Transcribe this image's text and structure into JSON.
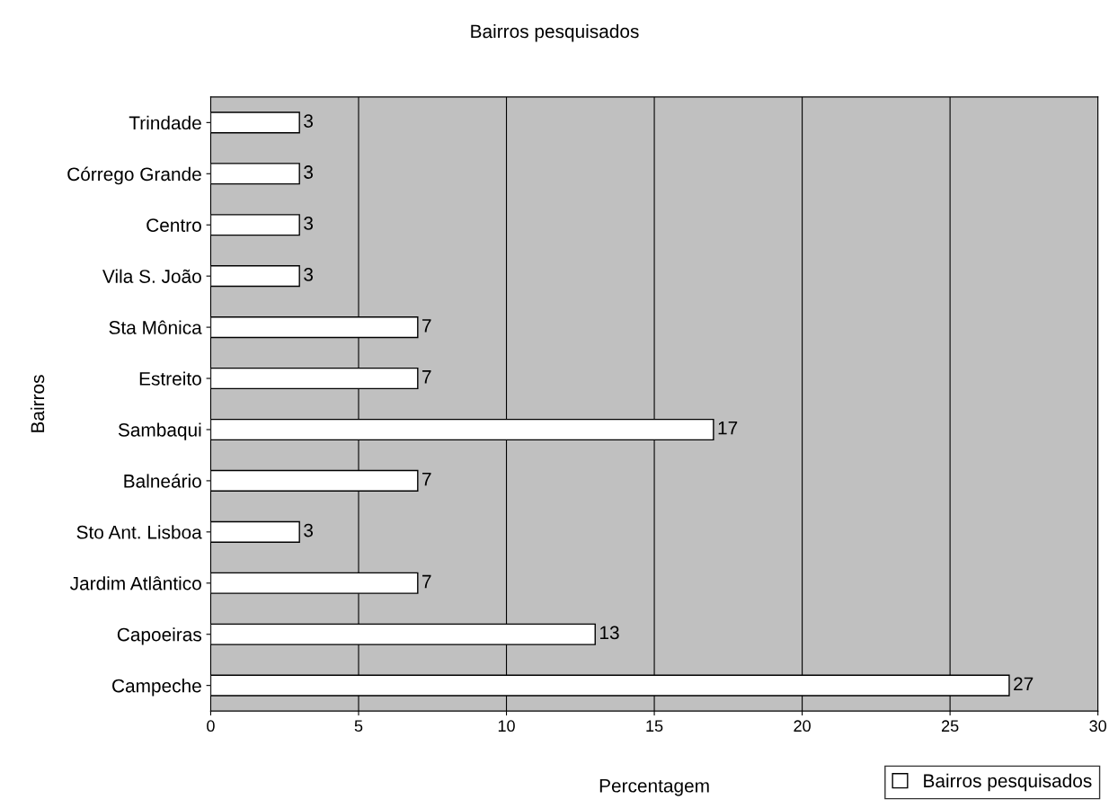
{
  "chart_data": {
    "type": "bar",
    "orientation": "horizontal",
    "title": "Bairros pesquisados",
    "xlabel": "Percentagem",
    "ylabel": "Bairros",
    "categories": [
      "Trindade",
      "Córrego Grande",
      "Centro",
      "Vila S. João",
      "Sta Mônica",
      "Estreito",
      "Sambaqui",
      "Balneário",
      "Sto Ant. Lisboa",
      "Jardim Atlântico",
      "Capoeiras",
      "Campeche"
    ],
    "series": [
      {
        "name": "Bairros pesquisados",
        "color": "#ffffff",
        "values": [
          3,
          3,
          3,
          3,
          7,
          7,
          17,
          7,
          3,
          7,
          13,
          27
        ]
      }
    ],
    "xlim": [
      0,
      30
    ],
    "xticks": [
      0,
      5,
      10,
      15,
      20,
      25,
      30
    ],
    "grid": "x",
    "data_labels": true,
    "legend": "bottom right"
  }
}
